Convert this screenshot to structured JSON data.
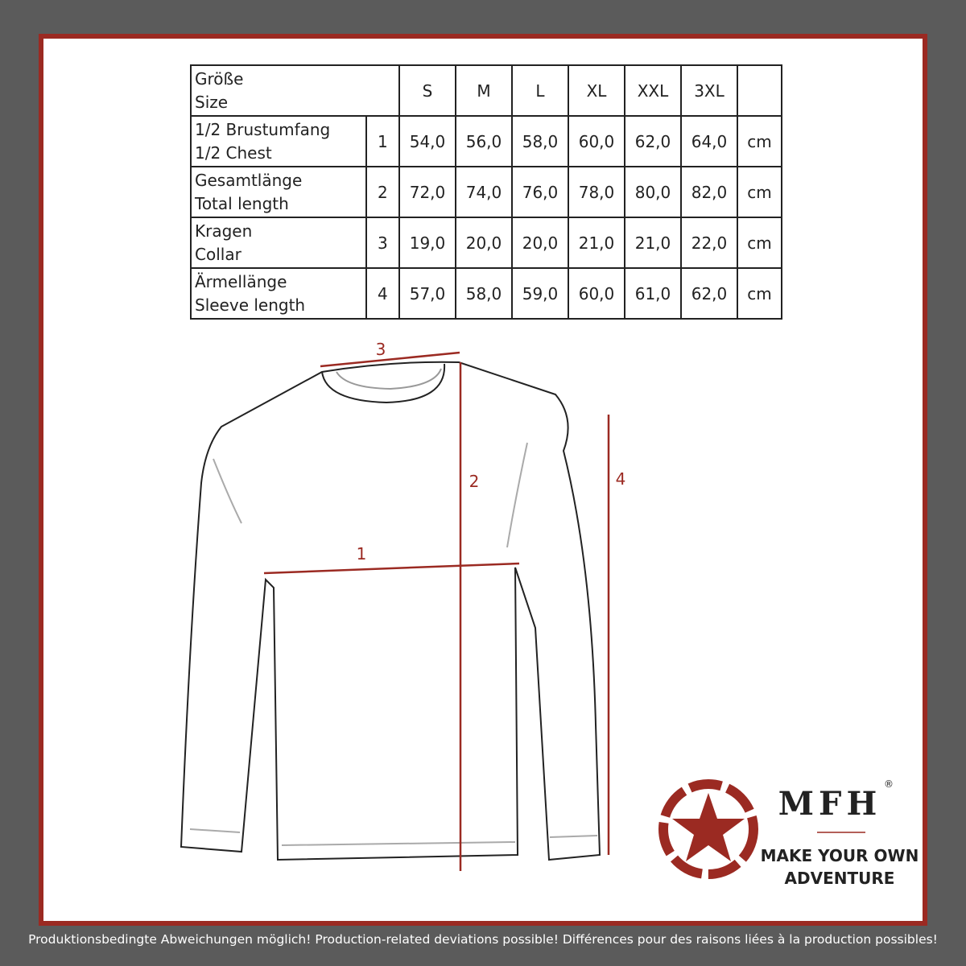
{
  "table": {
    "header": {
      "label": [
        "Größe",
        "Size"
      ],
      "sizes": [
        "S",
        "M",
        "L",
        "XL",
        "XXL",
        "3XL"
      ]
    },
    "rows": [
      {
        "label": [
          "1/2 Brustumfang",
          "1/2 Chest"
        ],
        "number": 1,
        "values": [
          "54,0",
          "56,0",
          "58,0",
          "60,0",
          "62,0",
          "64,0"
        ],
        "unit": "cm"
      },
      {
        "label": [
          "Gesamtlänge",
          "Total length"
        ],
        "number": 2,
        "values": [
          "72,0",
          "74,0",
          "76,0",
          "78,0",
          "80,0",
          "82,0"
        ],
        "unit": "cm"
      },
      {
        "label": [
          "Kragen",
          "Collar"
        ],
        "number": 3,
        "values": [
          "19,0",
          "20,0",
          "20,0",
          "21,0",
          "21,0",
          "22,0"
        ],
        "unit": "cm"
      },
      {
        "label": [
          "Ärmellänge",
          "Sleeve length"
        ],
        "number": 4,
        "values": [
          "57,0",
          "58,0",
          "59,0",
          "60,0",
          "61,0",
          "62,0"
        ],
        "unit": "cm"
      }
    ]
  },
  "diagram": {
    "labels": [
      "1",
      "2",
      "3",
      "4"
    ]
  },
  "logo": {
    "brand": "MFH",
    "mark": "®",
    "slogan": [
      "MAKE YOUR OWN",
      "ADVENTURE"
    ]
  },
  "footer": "Produktionsbedingte Abweichungen möglich! Production-related deviations possible! Différences pour des raisons liées à la production possibles!"
}
